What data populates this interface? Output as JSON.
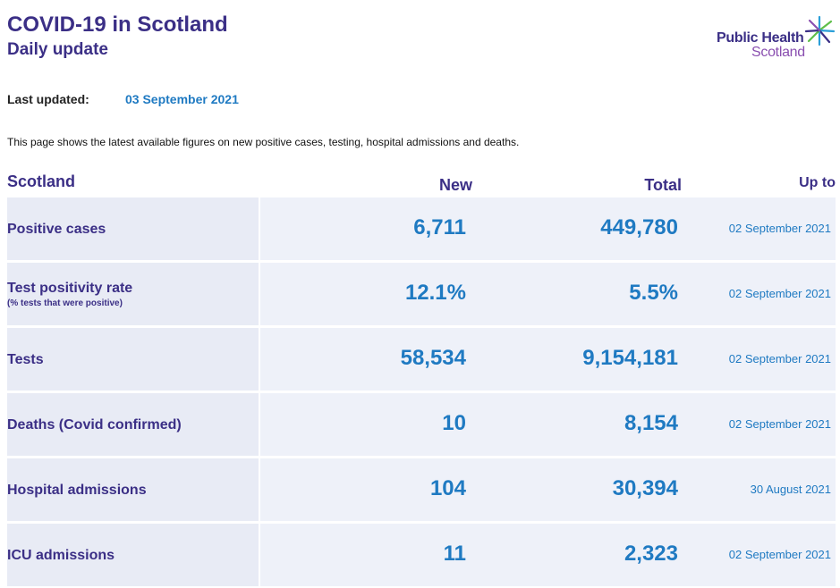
{
  "header": {
    "title": "COVID-19 in Scotland",
    "subtitle": "Daily update"
  },
  "logo": {
    "line1": "Public Health",
    "line2": "Scotland",
    "icon": "star-burst-icon"
  },
  "last_updated": {
    "label": "Last updated:",
    "value": "03 September 2021"
  },
  "intro": "This page shows the latest available figures on new positive cases, testing, hospital admissions and deaths.",
  "table": {
    "headers": {
      "region": "Scotland",
      "new": "New",
      "total": "Total",
      "up_to": "Up to"
    },
    "rows": [
      {
        "label": "Positive cases",
        "sublabel": "",
        "new": "6,711",
        "total": "449,780",
        "up_to": "02 September 2021"
      },
      {
        "label": "Test positivity rate",
        "sublabel": "(% tests that were positive)",
        "new": "12.1%",
        "total": "5.5%",
        "up_to": "02 September 2021"
      },
      {
        "label": "Tests",
        "sublabel": "",
        "new": "58,534",
        "total": "9,154,181",
        "up_to": "02 September 2021"
      },
      {
        "label": "Deaths (Covid confirmed)",
        "sublabel": "",
        "new": "10",
        "total": "8,154",
        "up_to": "02 September 2021"
      },
      {
        "label": "Hospital admissions",
        "sublabel": "",
        "new": "104",
        "total": "30,394",
        "up_to": "30 August 2021"
      },
      {
        "label": "ICU admissions",
        "sublabel": "",
        "new": "11",
        "total": "2,323",
        "up_to": "02 September 2021"
      }
    ]
  },
  "colors": {
    "heading": "#3b2f86",
    "value": "#1f7ac2",
    "logo_secondary": "#8a4fb0",
    "row_label_bg": "#e8ebf5",
    "row_data_bg": "#eef1f9"
  }
}
